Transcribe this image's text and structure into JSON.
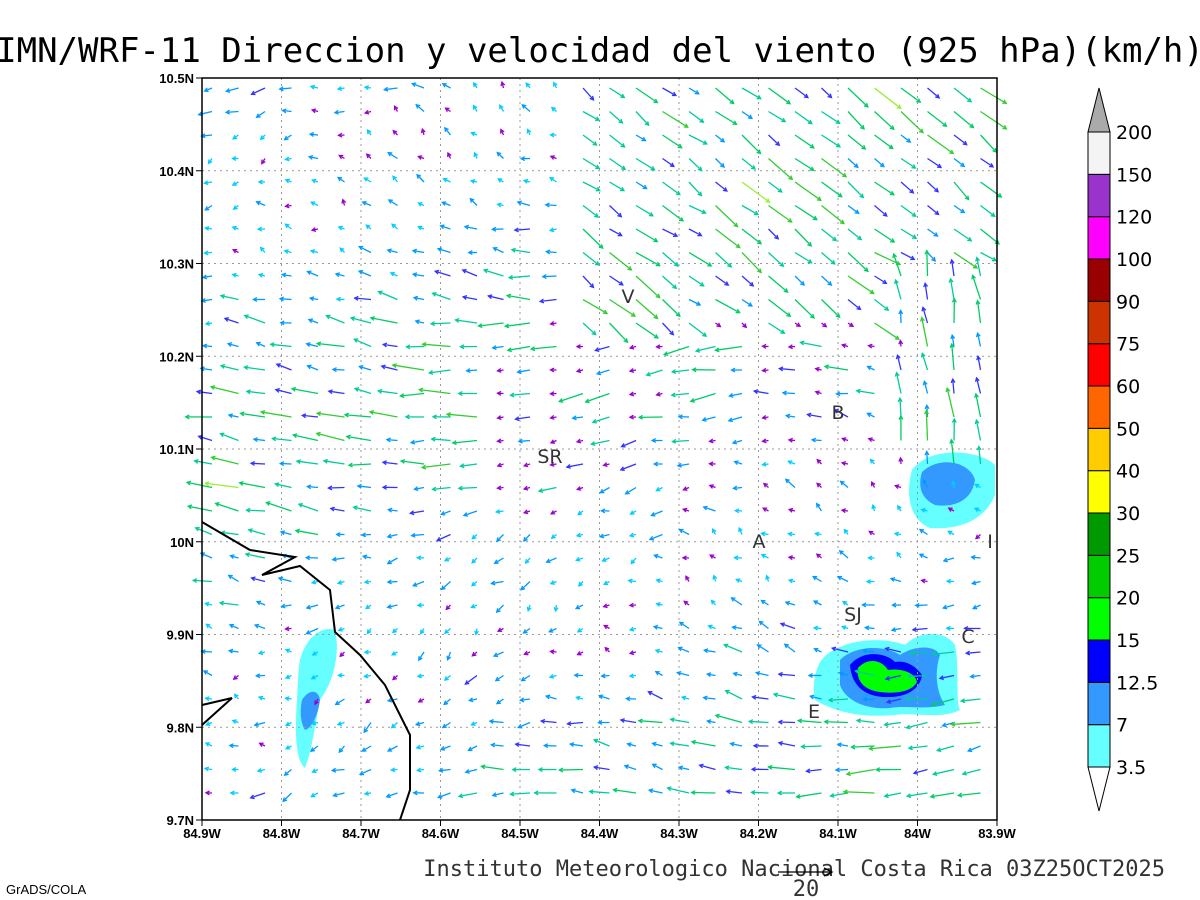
{
  "title": "IMN/WRF-11 Direccion y velocidad del viento (925 hPa)(km/h)",
  "footer": "Instituto Meteorologico Nacional Costa Rica 03Z25OCT2025",
  "credit": "GrADS/COLA",
  "reference_vector": {
    "label": "20"
  },
  "x_ticks": [
    "84.9W",
    "84.8W",
    "84.7W",
    "84.6W",
    "84.5W",
    "84.4W",
    "84.3W",
    "84.2W",
    "84.1W",
    "84W",
    "83.9W"
  ],
  "y_ticks": [
    "9.7N",
    "9.8N",
    "9.9N",
    "10N",
    "10.1N",
    "10.2N",
    "10.3N",
    "10.4N",
    "10.5N"
  ],
  "stations": [
    "V",
    "B",
    "SR",
    "A",
    "I",
    "SJ",
    "C",
    "E"
  ],
  "colorbar": {
    "labels": [
      "3.5",
      "7",
      "12.5",
      "15",
      "20",
      "25",
      "30",
      "40",
      "50",
      "60",
      "75",
      "90",
      "100",
      "120",
      "150",
      "200"
    ],
    "colors": [
      "#66ffff",
      "#3399ff",
      "#0000ff",
      "#00ff00",
      "#00cc00",
      "#009900",
      "#ffff00",
      "#ffcc00",
      "#ff6600",
      "#ff0000",
      "#cc3300",
      "#990000",
      "#ff00ff",
      "#9933cc",
      "#f4f4f4"
    ],
    "over_color": "#aaaaaa"
  }
}
